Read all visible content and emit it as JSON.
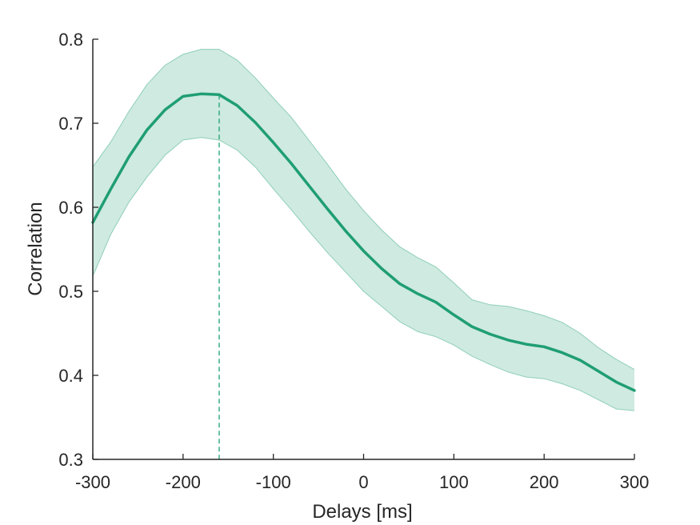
{
  "chart_data": {
    "type": "line",
    "title": "",
    "xlabel": "Delays [ms]",
    "ylabel": "Correlation",
    "xlim": [
      -300,
      300
    ],
    "ylim": [
      0.3,
      0.8
    ],
    "xticks": [
      -300,
      -200,
      -100,
      0,
      100,
      200,
      300
    ],
    "xtick_labels": [
      "-300",
      "-200",
      "-100",
      "0",
      "100",
      "200",
      "300"
    ],
    "yticks": [
      0.3,
      0.4,
      0.5,
      0.6,
      0.7,
      0.8
    ],
    "ytick_labels": [
      "0.3",
      "0.4",
      "0.5",
      "0.6",
      "0.7",
      "0.8"
    ],
    "grid": false,
    "legend": "none",
    "colors": {
      "line": "#1f9e73",
      "band": "#cfeae0",
      "band_edge": "#8fcfb8",
      "axis": "#262626"
    },
    "series": [
      {
        "x": [
          -300,
          -280,
          -260,
          -240,
          -220,
          -200,
          -180,
          -160,
          -140,
          -120,
          -100,
          -80,
          -60,
          -40,
          -20,
          0,
          20,
          40,
          60,
          80,
          100,
          120,
          140,
          160,
          180,
          200,
          220,
          240,
          260,
          280,
          300
        ],
        "y": [
          0.582,
          0.622,
          0.66,
          0.692,
          0.716,
          0.732,
          0.735,
          0.734,
          0.721,
          0.701,
          0.677,
          0.652,
          0.625,
          0.598,
          0.572,
          0.548,
          0.527,
          0.509,
          0.497,
          0.487,
          0.472,
          0.458,
          0.449,
          0.442,
          0.437,
          0.434,
          0.427,
          0.418,
          0.405,
          0.392,
          0.382
        ],
        "lower": [
          0.518,
          0.568,
          0.606,
          0.636,
          0.662,
          0.68,
          0.683,
          0.68,
          0.668,
          0.648,
          0.622,
          0.597,
          0.571,
          0.546,
          0.523,
          0.5,
          0.482,
          0.464,
          0.452,
          0.446,
          0.436,
          0.423,
          0.413,
          0.404,
          0.398,
          0.396,
          0.39,
          0.382,
          0.371,
          0.36,
          0.358
        ],
        "upper": [
          0.648,
          0.678,
          0.714,
          0.746,
          0.769,
          0.782,
          0.788,
          0.788,
          0.775,
          0.754,
          0.73,
          0.707,
          0.679,
          0.651,
          0.622,
          0.596,
          0.573,
          0.553,
          0.54,
          0.529,
          0.51,
          0.49,
          0.484,
          0.482,
          0.477,
          0.471,
          0.463,
          0.45,
          0.433,
          0.419,
          0.407
        ]
      }
    ],
    "peak_x": -160
  }
}
